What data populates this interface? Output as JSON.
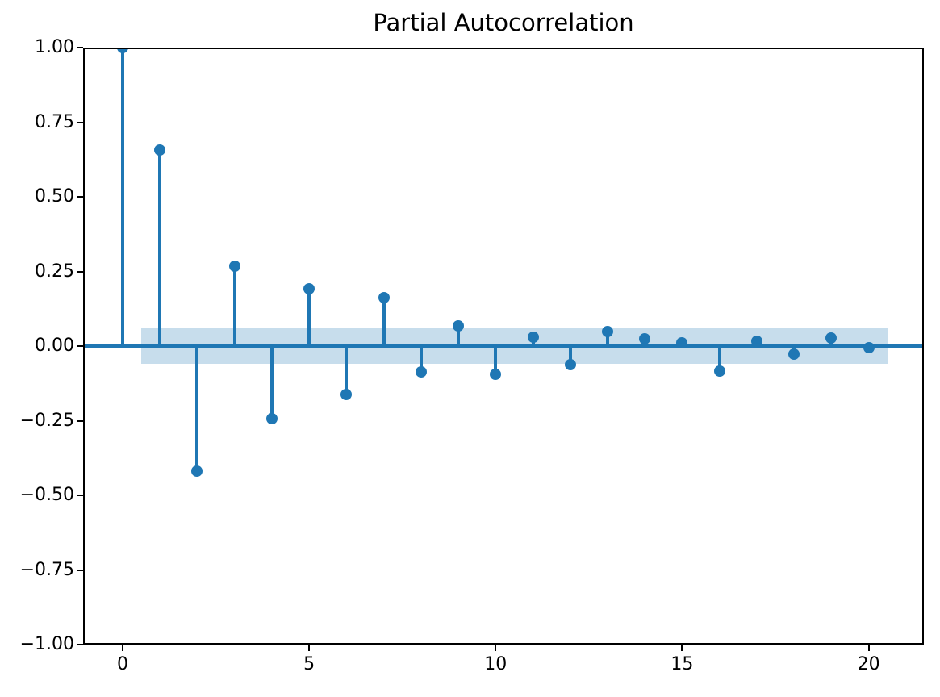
{
  "chart_data": {
    "type": "stem",
    "title": "Partial Autocorrelation",
    "xlabel": "",
    "ylabel": "",
    "x": [
      0,
      1,
      2,
      3,
      4,
      5,
      6,
      7,
      8,
      9,
      10,
      11,
      12,
      13,
      14,
      15,
      16,
      17,
      18,
      19,
      20
    ],
    "values": [
      1.0,
      0.657,
      -0.42,
      0.268,
      -0.242,
      0.193,
      -0.163,
      0.162,
      -0.087,
      0.067,
      -0.095,
      0.03,
      -0.063,
      0.049,
      0.024,
      0.01,
      -0.083,
      0.016,
      -0.026,
      0.027,
      -0.005
    ],
    "confidence_band": {
      "upper": 0.059,
      "lower": -0.059,
      "x_start": 0.5,
      "x_end": 20.5
    },
    "xlim": [
      -1.06,
      21.48
    ],
    "ylim": [
      -1.0,
      1.0
    ],
    "xticks": [
      0,
      5,
      10,
      15,
      20
    ],
    "xtick_labels": [
      "0",
      "5",
      "10",
      "15",
      "20"
    ],
    "yticks": [
      1.0,
      0.75,
      0.5,
      0.25,
      0.0,
      -0.25,
      -0.5,
      -0.75,
      -1.0
    ],
    "ytick_labels": [
      "1.00",
      "0.75",
      "0.50",
      "0.25",
      "0.00",
      "−0.25",
      "−0.50",
      "−0.75",
      "−1.00"
    ],
    "grid": false,
    "legend_position": "none",
    "colors": {
      "stem": "#1f77b4",
      "marker": "#1f77b4",
      "band": "#1f77b4",
      "band_opacity": 0.25,
      "spine": "#000000",
      "text": "#000000",
      "background": "#ffffff"
    }
  }
}
